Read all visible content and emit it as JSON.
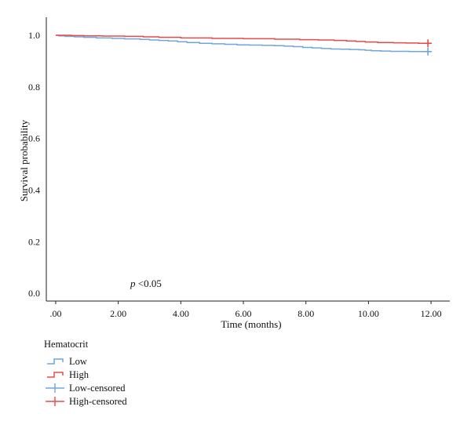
{
  "chart_data": {
    "type": "line",
    "subtype": "kaplan-meier",
    "title": "",
    "xlabel": "Time (months)",
    "ylabel": "Survival probability",
    "xlim": [
      -0.3,
      12.6
    ],
    "ylim": [
      -0.03,
      1.07
    ],
    "x_ticks": [
      0,
      2,
      4,
      6,
      8,
      10,
      12
    ],
    "x_tick_labels": [
      ".00",
      "2.00",
      "4.00",
      "6.00",
      "8.00",
      "10.00",
      "12.00"
    ],
    "y_ticks": [
      0,
      0.2,
      0.4,
      0.6,
      0.8,
      1.0
    ],
    "y_tick_labels": [
      "0.0",
      "0.2",
      "0.4",
      "0.6",
      "0.8",
      "1.0"
    ],
    "grid": false,
    "legend_title": "Hematocrit",
    "legend_position": "bottom-left",
    "annotation_p": "p",
    "annotation_rest": " <0.05",
    "series": [
      {
        "name": "Low",
        "color": "#6ea6de",
        "x": [
          0,
          0.1,
          0.3,
          0.6,
          0.9,
          1.3,
          1.8,
          2.2,
          2.7,
          3.0,
          3.3,
          3.6,
          3.9,
          4.2,
          4.6,
          5.0,
          5.4,
          5.8,
          6.2,
          6.6,
          7.0,
          7.3,
          7.6,
          7.9,
          8.2,
          8.5,
          8.8,
          9.1,
          9.4,
          9.7,
          9.9,
          10.1,
          10.4,
          10.7,
          11.0,
          11.3,
          11.6,
          11.9
        ],
        "y": [
          1.0,
          0.998,
          0.996,
          0.994,
          0.992,
          0.99,
          0.988,
          0.986,
          0.984,
          0.982,
          0.98,
          0.978,
          0.975,
          0.972,
          0.969,
          0.967,
          0.965,
          0.963,
          0.962,
          0.961,
          0.96,
          0.958,
          0.956,
          0.953,
          0.951,
          0.949,
          0.947,
          0.946,
          0.945,
          0.944,
          0.942,
          0.94,
          0.939,
          0.938,
          0.938,
          0.937,
          0.937,
          0.937
        ]
      },
      {
        "name": "High",
        "color": "#e84a4a",
        "x": [
          0,
          0.2,
          0.5,
          0.9,
          1.5,
          2.2,
          2.8,
          3.3,
          4.0,
          5.0,
          6.0,
          7.0,
          7.8,
          8.4,
          8.9,
          9.3,
          9.6,
          9.9,
          10.3,
          10.8,
          11.2,
          11.6,
          11.9
        ],
        "y": [
          1.0,
          1.0,
          0.999,
          0.998,
          0.997,
          0.996,
          0.994,
          0.992,
          0.99,
          0.988,
          0.987,
          0.985,
          0.983,
          0.982,
          0.98,
          0.978,
          0.976,
          0.974,
          0.972,
          0.971,
          0.97,
          0.969,
          0.969
        ]
      }
    ],
    "censored": [
      {
        "name": "Low-censored",
        "color": "#6ea6de",
        "x": [
          11.9
        ],
        "y": [
          0.937
        ]
      },
      {
        "name": "High-censored",
        "color": "#e84a4a",
        "x": [
          11.9
        ],
        "y": [
          0.969
        ]
      }
    ]
  }
}
